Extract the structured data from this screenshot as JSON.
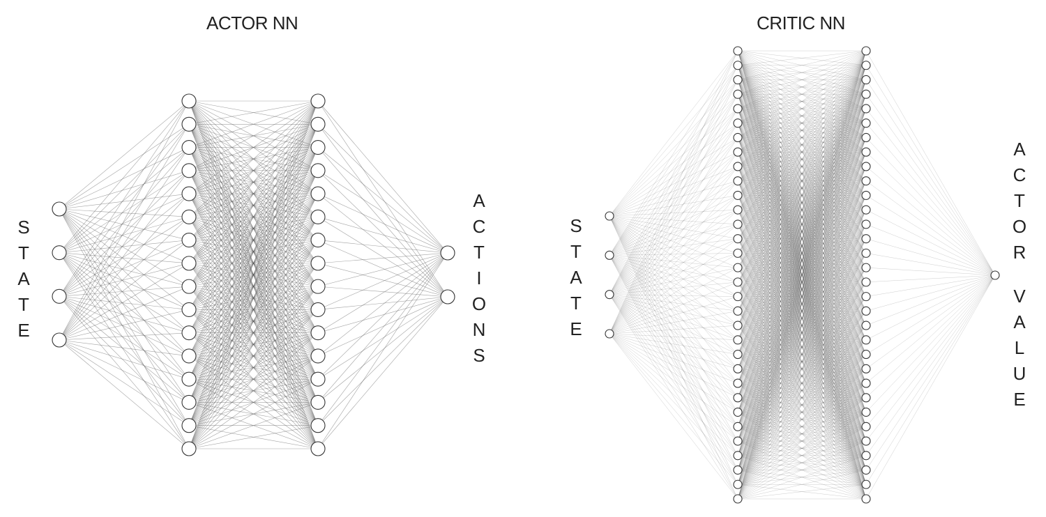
{
  "diagrams": [
    {
      "id": "actor",
      "title": "ACTOR NN",
      "input_label": "STATE",
      "output_label": "ACTIONS",
      "layer_sizes": [
        4,
        16,
        16,
        2
      ]
    },
    {
      "id": "critic",
      "title": "CRITIC NN",
      "input_label": "STATE",
      "output_label": "ACTOR VALUE",
      "layer_sizes": [
        4,
        32,
        32,
        1
      ]
    }
  ],
  "colors": {
    "background": "#ffffff",
    "node_stroke": "#333333",
    "node_fill": "#ffffff",
    "edge": "#555555",
    "text": "#222222"
  }
}
